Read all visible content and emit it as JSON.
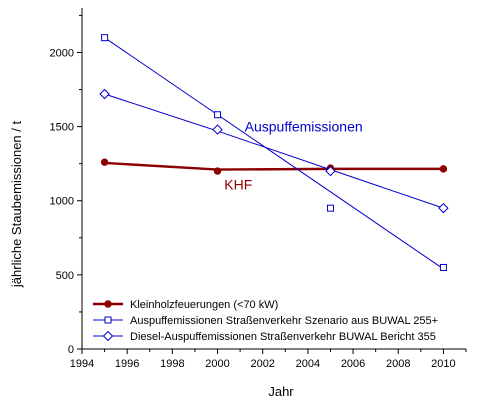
{
  "chart_data": {
    "type": "line",
    "xlabel": "Jahr",
    "ylabel": "jährliche Staubemissionen / t",
    "xlim": [
      1994,
      2011
    ],
    "ylim": [
      0,
      2300
    ],
    "xticks": [
      1994,
      1996,
      1998,
      2000,
      2002,
      2004,
      2006,
      2008,
      2010
    ],
    "yticks": [
      0,
      500,
      1000,
      1500,
      2000
    ],
    "grid": false,
    "legend_position": "bottom-left",
    "series": [
      {
        "name": "Kleinholzfeuerungen (<70 kW)",
        "color": "#8b0000",
        "marker": "filled-circle",
        "x": [
          1995,
          2000,
          2005,
          2010
        ],
        "y": [
          1260,
          1200,
          1220,
          1215
        ],
        "trend_y": [
          1255,
          1210,
          1215,
          1215
        ]
      },
      {
        "name": "Auspuffemissionen Straßenverkehr Szenario aus BUWAL 255+",
        "color": "#0000cc",
        "marker": "open-square",
        "x": [
          1995,
          2000,
          2005,
          2010
        ],
        "y": [
          2100,
          1580,
          950,
          550
        ],
        "trend_y": [
          2100,
          1580,
          1060,
          540
        ]
      },
      {
        "name": "Diesel-Auspuffemissionen Straßenverkehr BUWAL Bericht 355",
        "color": "#0000cc",
        "marker": "open-diamond",
        "x": [
          1995,
          2000,
          2005,
          2010
        ],
        "y": [
          1720,
          1480,
          1200,
          950
        ],
        "trend_y": [
          1720,
          1470,
          1210,
          950
        ]
      }
    ],
    "annotations": [
      {
        "text": "Auspuffemissionen",
        "x": 2001.2,
        "y": 1500,
        "color": "#0000cc"
      },
      {
        "text": "KHF",
        "x": 2000.3,
        "y": 1110,
        "color": "#8b0000"
      }
    ]
  }
}
